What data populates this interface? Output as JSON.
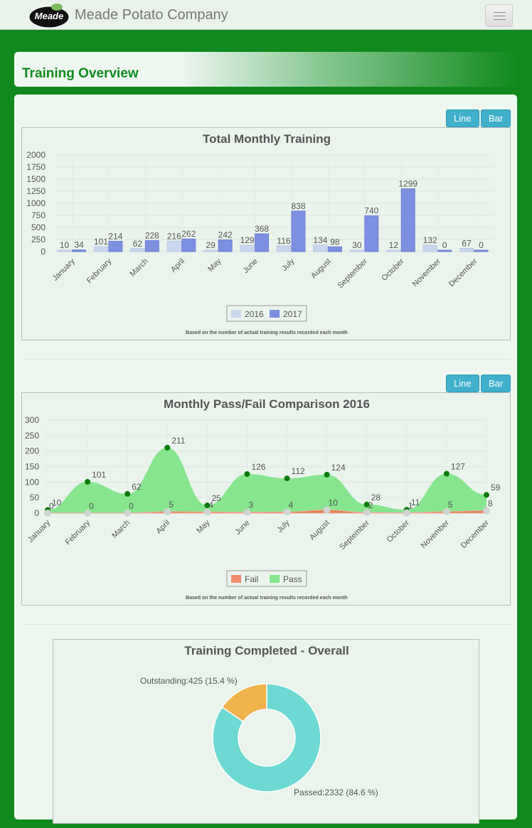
{
  "nav": {
    "brand": "Meade Potato Company",
    "logo_text": "Meade"
  },
  "header": {
    "title": "Training Overview"
  },
  "chart_buttons": {
    "line": "Line",
    "bar": "Bar"
  },
  "chart_data": [
    {
      "type": "bar",
      "title": "Total Monthly Training",
      "subtitle": "Based on the number of actual training results recorded each month",
      "categories": [
        "January",
        "February",
        "March",
        "April",
        "May",
        "June",
        "July",
        "August",
        "September",
        "October",
        "November",
        "December"
      ],
      "series": [
        {
          "name": "2016",
          "color": "#c9d6ee",
          "values": [
            10,
            101,
            62,
            216,
            29,
            129,
            116,
            134,
            30,
            12,
            132,
            67
          ]
        },
        {
          "name": "2017",
          "color": "#7d8fe0",
          "values": [
            34,
            214,
            228,
            262,
            242,
            368,
            838,
            98,
            740,
            1299,
            0,
            0
          ]
        }
      ],
      "yticks": [
        0,
        250,
        500,
        750,
        1000,
        1250,
        1500,
        1750,
        2000
      ],
      "ylim": [
        0,
        2000
      ],
      "legend": "bottom"
    },
    {
      "type": "area",
      "title": "Monthly Pass/Fail Comparison 2016",
      "subtitle": "Based on the number of actual training results recorded each month",
      "categories": [
        "January",
        "February",
        "March",
        "April",
        "May",
        "June",
        "July",
        "August",
        "September",
        "October",
        "November",
        "December"
      ],
      "series": [
        {
          "name": "Fail",
          "color": "#f08a6c",
          "values": [
            0,
            0,
            0,
            5,
            4,
            3,
            4,
            10,
            2,
            1,
            5,
            8
          ]
        },
        {
          "name": "Pass",
          "color": "#86e58e",
          "values": [
            10,
            101,
            62,
            211,
            25,
            126,
            112,
            124,
            28,
            11,
            127,
            59
          ]
        }
      ],
      "yticks": [
        0,
        50,
        100,
        150,
        200,
        250,
        300
      ],
      "ylim": [
        0,
        300
      ],
      "legend": "bottom"
    },
    {
      "type": "pie",
      "title": "Training Completed - Overall",
      "slices": [
        {
          "label": "Passed",
          "value": 2332,
          "pct": "84.6 %",
          "color": "#6cd9d2",
          "text": "Passed:2332 (84.6 %)"
        },
        {
          "label": "Outstanding",
          "value": 425,
          "pct": "15.4 %",
          "color": "#efb24c",
          "text": "Outstanding:425 (15.4 %)"
        }
      ]
    }
  ]
}
